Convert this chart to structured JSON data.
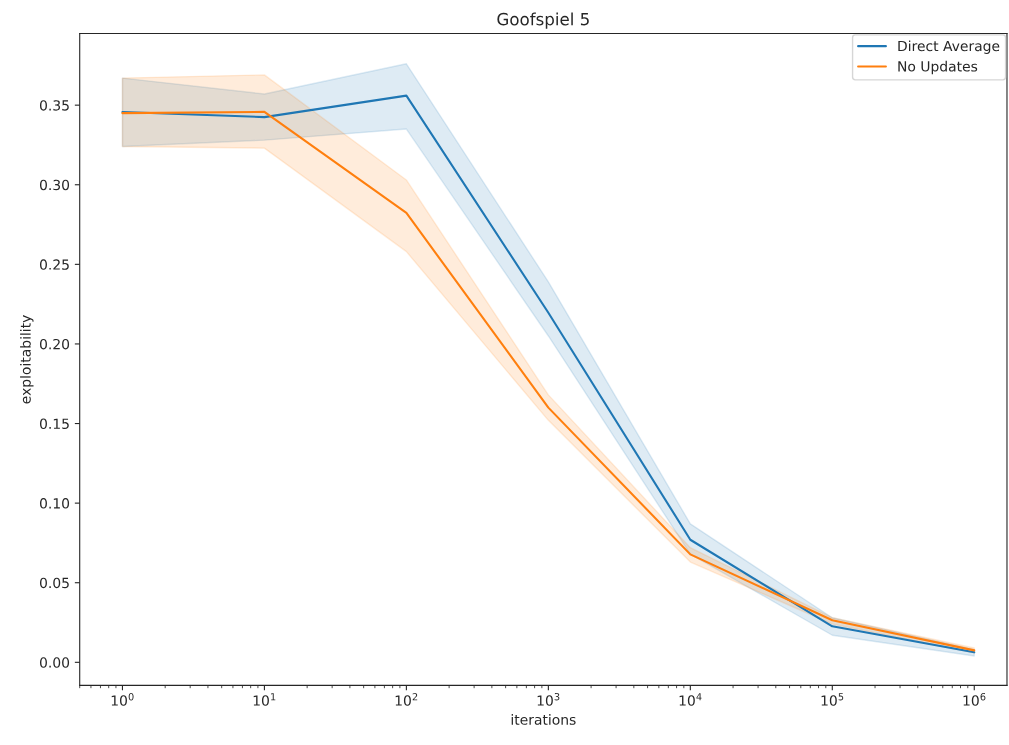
{
  "chart_data": {
    "type": "line",
    "title": "Goofspiel 5",
    "xlabel": "iterations",
    "ylabel": "exploitability",
    "log": "x",
    "x": [
      1,
      10,
      100,
      1000,
      10000,
      100000,
      1000000
    ],
    "xlim": [
      0.5,
      1700000
    ],
    "xticks": [
      {
        "value": 1,
        "label": "10$^{0}$"
      },
      {
        "value": 10,
        "label": "10$^{1}$"
      },
      {
        "value": 100,
        "label": "10$^{2}$"
      },
      {
        "value": 1000,
        "label": "10$^{3}$"
      },
      {
        "value": 10000,
        "label": "10$^{4}$"
      },
      {
        "value": 100000,
        "label": "10$^{5}$"
      },
      {
        "value": 1000000,
        "label": "10$^{6}$"
      }
    ],
    "ylim": [
      -0.0145,
      0.395
    ],
    "yticks": [
      {
        "value": 0,
        "label": "0.00"
      },
      {
        "value": 0.05,
        "label": "0.05"
      },
      {
        "value": 0.1,
        "label": "0.10"
      },
      {
        "value": 0.15,
        "label": "0.15"
      },
      {
        "value": 0.2,
        "label": "0.20"
      },
      {
        "value": 0.25,
        "label": "0.25"
      },
      {
        "value": 0.3,
        "label": "0.30"
      },
      {
        "value": 0.35,
        "label": "0.35"
      }
    ],
    "grid": false,
    "legend": "top right",
    "marker": "none",
    "line_style": "solid",
    "series": [
      {
        "name": "Direct Average",
        "color": "#1f77b4",
        "values": [
          0.3457,
          0.3425,
          0.356,
          0.2196,
          0.077,
          0.0226,
          0.0063
        ],
        "lower": [
          0.324,
          0.328,
          0.335,
          0.205,
          0.068,
          0.017,
          0.004
        ],
        "upper": [
          0.367,
          0.357,
          0.376,
          0.239,
          0.087,
          0.028,
          0.008
        ]
      },
      {
        "name": "No Updates",
        "color": "#ff7f0e",
        "values": [
          0.345,
          0.3458,
          0.2823,
          0.16,
          0.0678,
          0.0264,
          0.0075
        ],
        "lower": [
          0.324,
          0.323,
          0.258,
          0.152,
          0.063,
          0.024,
          0.006
        ],
        "upper": [
          0.367,
          0.369,
          0.303,
          0.168,
          0.072,
          0.028,
          0.009
        ]
      }
    ]
  }
}
